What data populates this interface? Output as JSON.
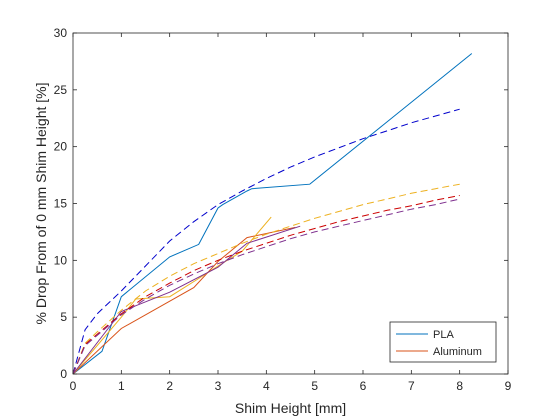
{
  "chart_data": {
    "type": "line",
    "title": "",
    "xlabel": "Shim Height [mm]",
    "ylabel": "% Drop From of 0 mm Shim Height [%]",
    "xlim": [
      0,
      9
    ],
    "ylim": [
      0,
      30
    ],
    "xticks": [
      "0",
      "1",
      "2",
      "3",
      "4",
      "5",
      "6",
      "7",
      "8",
      "9"
    ],
    "yticks": [
      "0",
      "5",
      "10",
      "15",
      "20",
      "25",
      "30"
    ],
    "grid": false,
    "legend_position": "bottom-right",
    "legend": [
      {
        "name": "PLA",
        "color": "#0072BD"
      },
      {
        "name": "Aluminum",
        "color": "#D95319"
      }
    ],
    "series": [
      {
        "name": "PLA",
        "style": "solid",
        "color": "#0072BD",
        "x": [
          0,
          0.6,
          1.0,
          2.0,
          2.6,
          3.0,
          3.1,
          3.6,
          3.7,
          4.9,
          8.25
        ],
        "y": [
          0,
          2.0,
          6.8,
          10.3,
          11.4,
          14.6,
          14.9,
          16.1,
          16.3,
          16.7,
          28.2
        ]
      },
      {
        "style": "solid",
        "color": "#D95319",
        "x": [
          0,
          1.0,
          2.5,
          3.0,
          3.6,
          4.6
        ],
        "y": [
          0,
          4.0,
          7.6,
          9.9,
          12.0,
          12.9
        ]
      },
      {
        "style": "solid",
        "color": "#EDB120",
        "x": [
          0,
          1.0,
          1.3,
          2.0,
          2.6,
          3.0,
          3.5,
          4.1
        ],
        "y": [
          0,
          5.0,
          6.6,
          6.8,
          8.4,
          9.5,
          10.8,
          13.8
        ]
      },
      {
        "style": "solid",
        "color": "#7E2F8E",
        "x": [
          0,
          1.0,
          2.0,
          3.0,
          3.6,
          4.7
        ],
        "y": [
          0,
          5.5,
          7.2,
          9.4,
          11.5,
          13.0
        ]
      },
      {
        "style": "dashed",
        "color": "#0000CC",
        "x": [
          0,
          0.25,
          0.5,
          1.0,
          1.5,
          2.0,
          2.5,
          3.0,
          3.5,
          4.0,
          4.5,
          5.0,
          5.5,
          6.0,
          6.5,
          7.0,
          7.5,
          8.0
        ],
        "y": [
          0,
          3.9,
          5.3,
          7.3,
          9.5,
          11.7,
          13.4,
          14.9,
          16.1,
          17.2,
          18.2,
          19.1,
          19.9,
          20.7,
          21.4,
          22.1,
          22.7,
          23.3
        ]
      },
      {
        "style": "dashed",
        "color": "#EDB120",
        "x": [
          0,
          0.25,
          0.5,
          1.0,
          1.5,
          2.0,
          2.5,
          3.0,
          3.5,
          4.0,
          4.5,
          5.0,
          5.5,
          6.0,
          6.5,
          7.0,
          7.5,
          8.0
        ],
        "y": [
          0,
          2.7,
          3.7,
          5.6,
          7.3,
          8.6,
          9.7,
          10.6,
          11.5,
          12.3,
          13.0,
          13.7,
          14.3,
          14.9,
          15.4,
          15.9,
          16.3,
          16.7
        ]
      },
      {
        "style": "dashed",
        "color": "#CC0000",
        "x": [
          0,
          0.25,
          0.5,
          1.0,
          1.5,
          2.0,
          2.5,
          3.0,
          3.5,
          4.0,
          4.5,
          5.0,
          5.5,
          6.0,
          6.5,
          7.0,
          7.5,
          8.0
        ],
        "y": [
          0,
          2.6,
          3.5,
          5.3,
          6.8,
          8.0,
          9.1,
          10.0,
          10.8,
          11.5,
          12.2,
          12.8,
          13.4,
          13.9,
          14.4,
          14.8,
          15.3,
          15.7
        ]
      },
      {
        "style": "dashed",
        "color": "#7E2F8E",
        "x": [
          0,
          0.25,
          0.5,
          1.0,
          1.5,
          2.0,
          2.5,
          3.0,
          3.5,
          4.0,
          4.5,
          5.0,
          5.5,
          6.0,
          6.5,
          7.0,
          7.5,
          8.0
        ],
        "y": [
          0,
          2.5,
          3.4,
          5.2,
          6.6,
          7.8,
          8.8,
          9.7,
          10.5,
          11.2,
          11.9,
          12.5,
          13.0,
          13.5,
          14.0,
          14.5,
          14.9,
          15.4
        ]
      }
    ]
  }
}
